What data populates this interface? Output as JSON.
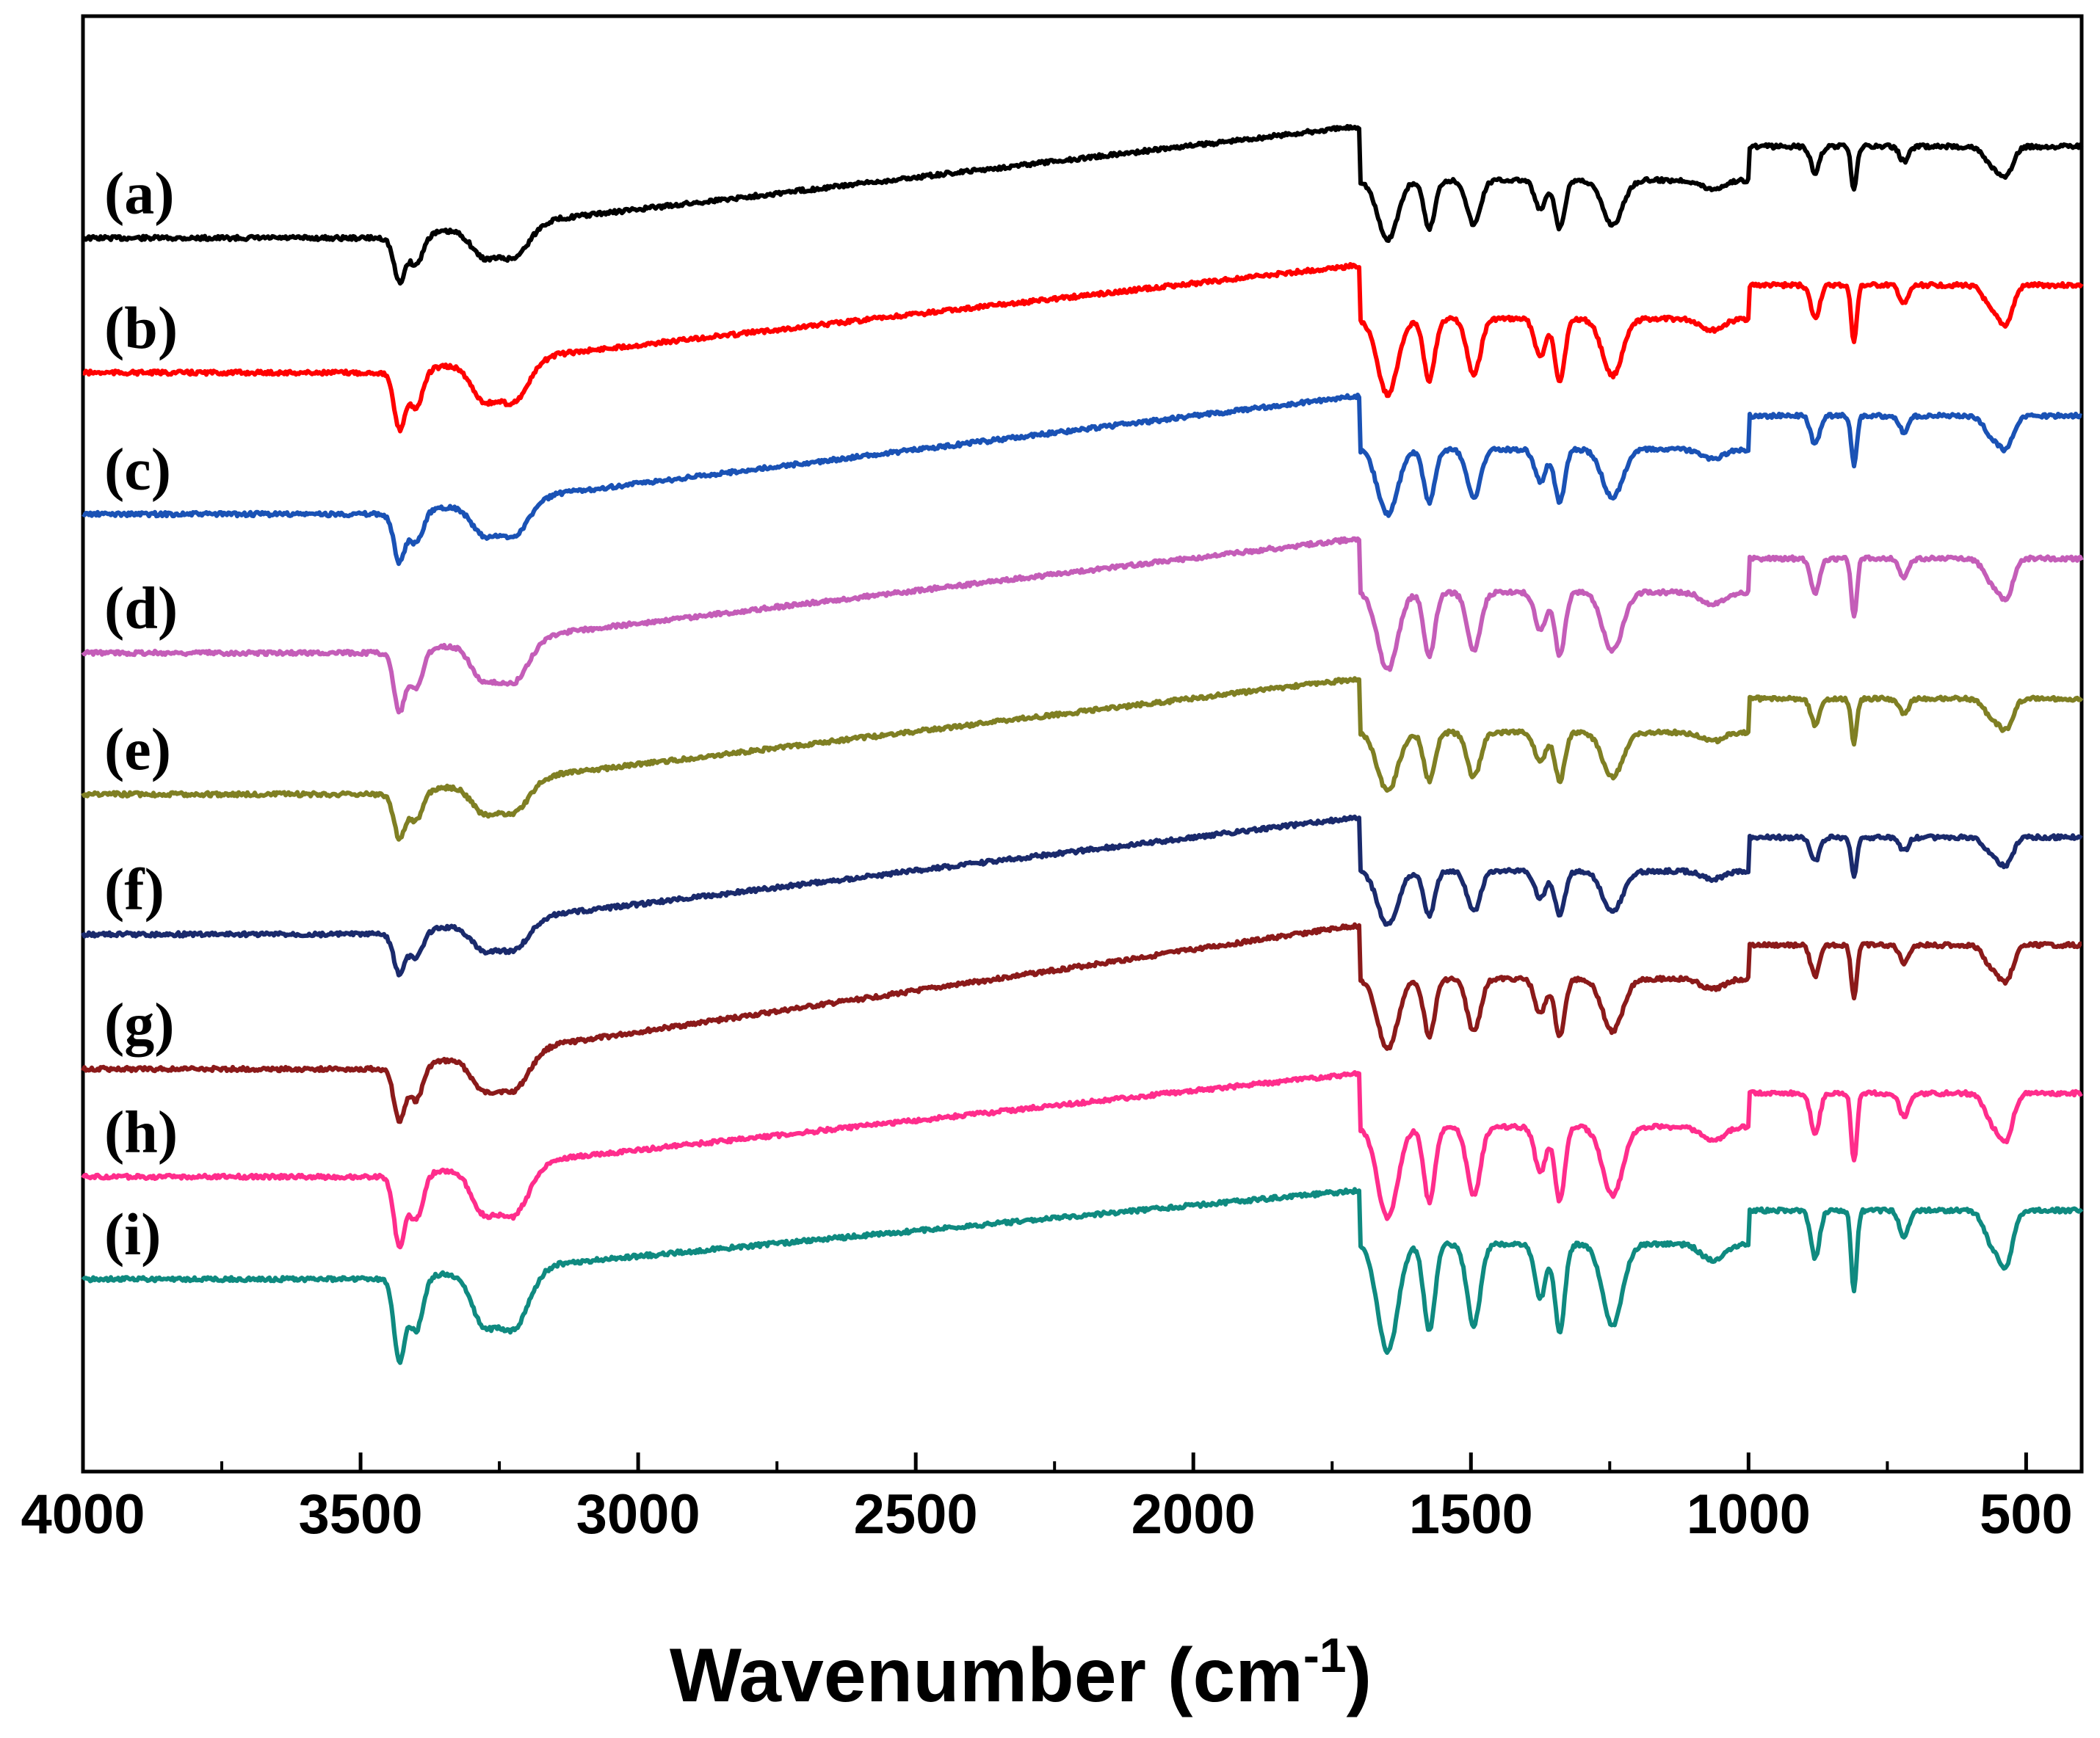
{
  "chart_data": {
    "type": "line",
    "title": "",
    "xlabel": "Wavenumber (cm",
    "xlabel_superscript": "-1",
    "ylabel": "",
    "xlim": [
      4000,
      400
    ],
    "x_reversed": true,
    "y_axis_visible_labels": false,
    "grid": false,
    "x_ticks": [
      4000,
      3500,
      3000,
      2500,
      2000,
      1500,
      1000,
      500
    ],
    "x_tick_labels": [
      "4000",
      "3500",
      "3000",
      "2500",
      "2000",
      "1500",
      "1000",
      "500"
    ],
    "x_minor_ticks": [
      3750,
      3250,
      2750,
      2250,
      1750,
      1250,
      750
    ],
    "peaks_cm-1": [
      3430,
      3400,
      3280,
      3225,
      1650,
      1575,
      1495,
      1375,
      1340,
      1245,
      1065,
      880,
      810,
      720,
      560,
      535
    ],
    "series": [
      {
        "name": "(a)",
        "color": "#000000",
        "baseline_start": 0.095,
        "baseline_end": 0.072,
        "plateau": 0.0,
        "intensity": 0.55
      },
      {
        "name": "(b)",
        "color": "#ff0000",
        "baseline_start": 0.195,
        "baseline_end": 0.175,
        "plateau": 0.1,
        "intensity": 0.7
      },
      {
        "name": "(c)",
        "color": "#1a52b5",
        "baseline_start": 0.3,
        "baseline_end": 0.272,
        "plateau": 0.2,
        "intensity": 0.6
      },
      {
        "name": "(d)",
        "color": "#c45db8",
        "baseline_start": 0.403,
        "baseline_end": 0.378,
        "plateau": 0.3,
        "intensity": 0.72
      },
      {
        "name": "(e)",
        "color": "#7f7f23",
        "baseline_start": 0.508,
        "baseline_end": 0.482,
        "plateau": 0.4,
        "intensity": 0.55
      },
      {
        "name": "(f)",
        "color": "#1a2a6c",
        "baseline_start": 0.612,
        "baseline_end": 0.585,
        "plateau": 0.5,
        "intensity": 0.5
      },
      {
        "name": "(g)",
        "color": "#8b1a1a",
        "baseline_start": 0.712,
        "baseline_end": 0.665,
        "plateau": 0.6,
        "intensity": 0.65
      },
      {
        "name": "(h)",
        "color": "#ff2d8c",
        "baseline_start": 0.792,
        "baseline_end": 0.775,
        "plateau": 0.7,
        "intensity": 0.85
      },
      {
        "name": "(i)",
        "color": "#0f8a80",
        "baseline_start": 0.868,
        "baseline_end": 0.862,
        "plateau": 0.8,
        "intensity": 1.0
      }
    ]
  }
}
